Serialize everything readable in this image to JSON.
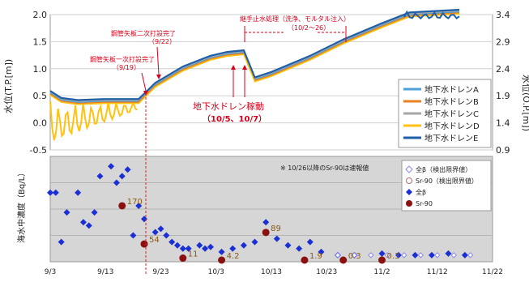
{
  "chart_data": [
    {
      "type": "line",
      "ylabel_left": "水位(T.P.[m])",
      "ylabel_right": "水位(O.P.[m])",
      "y_ticks_left": [
        "2.0",
        "1.5",
        "1.0",
        "0.5",
        "0.0",
        "-0.5"
      ],
      "y_ticks_right": [
        "3.4",
        "2.9",
        "2.4",
        "1.9",
        "1.4",
        "0.9"
      ],
      "ylim_left": [
        -0.5,
        2.0
      ],
      "ylim_right": [
        0.9,
        3.4
      ],
      "grid": true,
      "legend_placement": "bottom-right",
      "series": [
        {
          "name": "地下水ドレンA",
          "color": "#4e9fd8"
        },
        {
          "name": "地下水ドレンB",
          "color": "#e8821f"
        },
        {
          "name": "地下水ドレンC",
          "color": "#a7a7a7"
        },
        {
          "name": "地下水ドレンD",
          "color": "#ffc20e"
        },
        {
          "name": "地下水ドレンE",
          "color": "#1f5fa8"
        }
      ],
      "level_points": [
        {
          "x": "9/3",
          "y": 0.55
        },
        {
          "x": "9/5",
          "y": 0.42
        },
        {
          "x": "9/8",
          "y": 0.38
        },
        {
          "x": "9/13",
          "y": 0.4
        },
        {
          "x": "9/17",
          "y": 0.4
        },
        {
          "x": "9/19",
          "y": 0.4
        },
        {
          "x": "9/22",
          "y": 0.7
        },
        {
          "x": "9/27",
          "y": 1.0
        },
        {
          "x": "10/2",
          "y": 1.2
        },
        {
          "x": "10/5",
          "y": 1.27
        },
        {
          "x": "10/8",
          "y": 1.3
        },
        {
          "x": "10/10",
          "y": 0.8
        },
        {
          "x": "10/13",
          "y": 0.9
        },
        {
          "x": "10/20",
          "y": 1.2
        },
        {
          "x": "10/26",
          "y": 1.5
        },
        {
          "x": "11/2",
          "y": 1.8
        },
        {
          "x": "11/7",
          "y": 2.0
        },
        {
          "x": "11/16",
          "y": 2.05
        }
      ],
      "annotations": [
        {
          "text": "鋼管矢板一次打設完了",
          "sub": "（9/19）"
        },
        {
          "text": "鋼管矢板二次打設完了",
          "sub": "（9/22）"
        },
        {
          "text": "継手止水処理（洗浄、モルタル注入）",
          "sub": "（10/2～26）"
        },
        {
          "text": "地下水ドレン稼動",
          "sub": "（10/5、10/7）"
        }
      ]
    },
    {
      "type": "scatter",
      "ylabel": "海水中濃度（Bq/L）",
      "note": "※ 10/26以降のSr-90は速報値",
      "x_ticks": [
        "9/3",
        "9/13",
        "9/23",
        "10/3",
        "10/13",
        "10/23",
        "11/2",
        "11/12",
        "11/22"
      ],
      "grid": true,
      "legend_placement": "top-right",
      "legend": [
        {
          "name": "全β（検出限界値）",
          "symbol": "open-diamond"
        },
        {
          "name": "Sr-90（検出限界値）",
          "symbol": "open-circle"
        },
        {
          "name": "全β",
          "symbol": "diamond",
          "color": "#1a2fd6"
        },
        {
          "name": "Sr-90",
          "symbol": "circle",
          "color": "#8b1111"
        }
      ],
      "gross_beta": [
        {
          "x": "9/3",
          "y": 210
        },
        {
          "x": "9/4",
          "y": 210
        },
        {
          "x": "9/5",
          "y": 60
        },
        {
          "x": "9/6",
          "y": 150
        },
        {
          "x": "9/8",
          "y": 210
        },
        {
          "x": "9/9",
          "y": 120
        },
        {
          "x": "9/10",
          "y": 110
        },
        {
          "x": "9/11",
          "y": 150
        },
        {
          "x": "9/12",
          "y": 260
        },
        {
          "x": "9/14",
          "y": 290
        },
        {
          "x": "9/15",
          "y": 240
        },
        {
          "x": "9/16",
          "y": 260
        },
        {
          "x": "9/17",
          "y": 280
        },
        {
          "x": "9/18",
          "y": 80
        },
        {
          "x": "9/19",
          "y": 170
        },
        {
          "x": "9/20",
          "y": 130
        },
        {
          "x": "9/22",
          "y": 90
        },
        {
          "x": "9/23",
          "y": 100
        },
        {
          "x": "9/24",
          "y": 80
        },
        {
          "x": "9/25",
          "y": 60
        },
        {
          "x": "9/26",
          "y": 50
        },
        {
          "x": "9/27",
          "y": 40
        },
        {
          "x": "9/28",
          "y": 40
        },
        {
          "x": "9/30",
          "y": 50
        },
        {
          "x": "10/1",
          "y": 40
        },
        {
          "x": "10/2",
          "y": 45
        },
        {
          "x": "10/4",
          "y": 30
        },
        {
          "x": "10/6",
          "y": 40
        },
        {
          "x": "10/8",
          "y": 50
        },
        {
          "x": "10/10",
          "y": 60
        },
        {
          "x": "10/12",
          "y": 120
        },
        {
          "x": "10/14",
          "y": 70
        },
        {
          "x": "10/16",
          "y": 50
        },
        {
          "x": "10/18",
          "y": 40
        },
        {
          "x": "10/20",
          "y": 60
        },
        {
          "x": "10/22",
          "y": 30
        },
        {
          "x": "10/25",
          "y": 20
        },
        {
          "x": "10/28",
          "y": 20
        },
        {
          "x": "11/2",
          "y": 25
        },
        {
          "x": "11/5",
          "y": 20
        },
        {
          "x": "11/8",
          "y": 20
        },
        {
          "x": "11/11",
          "y": 20
        },
        {
          "x": "11/14",
          "y": 25
        },
        {
          "x": "11/17",
          "y": 20
        }
      ],
      "gross_beta_dl": [
        {
          "x": "10/25",
          "y": 20
        },
        {
          "x": "10/28",
          "y": 20
        },
        {
          "x": "10/31",
          "y": 20
        },
        {
          "x": "11/3",
          "y": 20
        },
        {
          "x": "11/6",
          "y": 20
        },
        {
          "x": "11/9",
          "y": 20
        },
        {
          "x": "11/12",
          "y": 20
        },
        {
          "x": "11/15",
          "y": 20
        },
        {
          "x": "11/18",
          "y": 20
        }
      ],
      "sr90": [
        {
          "x": "9/16",
          "y": 170,
          "label": "170"
        },
        {
          "x": "9/20",
          "y": 54,
          "label": "54"
        },
        {
          "x": "9/27",
          "y": 11,
          "label": "11"
        },
        {
          "x": "10/4",
          "y": 4.2,
          "label": "4.2"
        },
        {
          "x": "10/12",
          "y": 89,
          "label": "89"
        },
        {
          "x": "10/19",
          "y": 1.9,
          "label": "1.9"
        },
        {
          "x": "10/26",
          "y": 0.3,
          "label": "0.3"
        },
        {
          "x": "11/2",
          "y": 0.3,
          "label": "0.3"
        }
      ]
    }
  ]
}
